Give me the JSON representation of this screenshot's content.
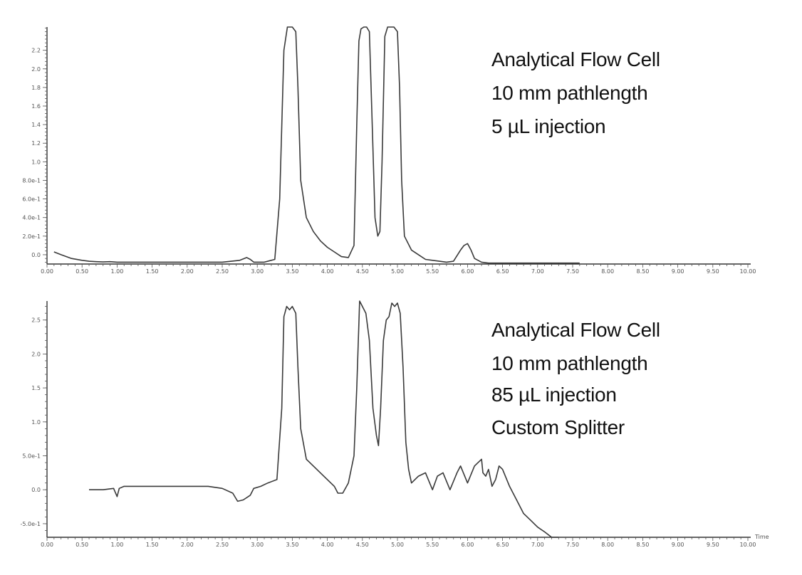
{
  "chart_data": [
    {
      "type": "line",
      "xlabel": "",
      "ylabel": "",
      "xlim": [
        0.0,
        10.0
      ],
      "ylim": [
        -0.1,
        2.45
      ],
      "x_ticks": [
        "0.00",
        "0.50",
        "1.00",
        "1.50",
        "2.00",
        "2.50",
        "3.00",
        "3.50",
        "4.00",
        "4.50",
        "5.00",
        "5.50",
        "6.00",
        "6.50",
        "7.00",
        "7.50",
        "8.00",
        "8.50",
        "9.00",
        "9.50",
        "10.00"
      ],
      "y_ticks": [
        {
          "value": 0.0,
          "label": "0.0"
        },
        {
          "value": 0.2,
          "label": "2.0e-1"
        },
        {
          "value": 0.4,
          "label": "4.0e-1"
        },
        {
          "value": 0.6,
          "label": "6.0e-1"
        },
        {
          "value": 0.8,
          "label": "8.0e-1"
        },
        {
          "value": 1.0,
          "label": "1.0"
        },
        {
          "value": 1.2,
          "label": "1.2"
        },
        {
          "value": 1.4,
          "label": "1.4"
        },
        {
          "value": 1.6,
          "label": "1.6"
        },
        {
          "value": 1.8,
          "label": "1.8"
        },
        {
          "value": 2.0,
          "label": "2.0"
        },
        {
          "value": 2.2,
          "label": "2.2"
        }
      ],
      "annotation": [
        "Analytical Flow Cell",
        "10 mm pathlength",
        "5 µL injection"
      ],
      "series": [
        {
          "x": [
            0.1,
            0.2,
            0.35,
            0.5,
            0.6,
            0.7,
            0.8,
            0.9,
            1.0,
            1.5,
            2.0,
            2.5,
            2.75,
            2.85,
            2.9,
            2.95,
            3.1,
            3.25,
            3.32,
            3.38,
            3.43,
            3.46,
            3.5,
            3.55,
            3.58,
            3.62,
            3.7,
            3.8,
            3.9,
            4.0,
            4.1,
            4.2,
            4.3,
            4.38,
            4.42,
            4.45,
            4.48,
            4.52,
            4.56,
            4.6,
            4.64,
            4.68,
            4.72,
            4.75,
            4.78,
            4.82,
            4.86,
            4.9,
            4.95,
            5.0,
            5.03,
            5.06,
            5.1,
            5.2,
            5.3,
            5.4,
            5.5,
            5.6,
            5.7,
            5.8,
            5.9,
            5.95,
            6.0,
            6.05,
            6.1,
            6.2,
            6.3,
            6.4,
            6.6,
            7.0,
            7.6
          ],
          "y": [
            0.03,
            0.0,
            -0.04,
            -0.06,
            -0.07,
            -0.075,
            -0.078,
            -0.075,
            -0.08,
            -0.08,
            -0.08,
            -0.08,
            -0.06,
            -0.03,
            -0.05,
            -0.08,
            -0.08,
            -0.05,
            0.6,
            2.2,
            2.45,
            2.45,
            2.45,
            2.4,
            1.8,
            0.8,
            0.4,
            0.25,
            0.15,
            0.08,
            0.03,
            -0.02,
            -0.03,
            0.1,
            1.4,
            2.3,
            2.43,
            2.45,
            2.45,
            2.4,
            1.4,
            0.4,
            0.2,
            0.25,
            1.0,
            2.35,
            2.45,
            2.45,
            2.45,
            2.4,
            1.8,
            0.8,
            0.2,
            0.05,
            0.0,
            -0.05,
            -0.06,
            -0.07,
            -0.08,
            -0.07,
            0.05,
            0.1,
            0.12,
            0.05,
            -0.04,
            -0.08,
            -0.09,
            -0.09,
            -0.09,
            -0.09,
            -0.09
          ]
        }
      ]
    },
    {
      "type": "line",
      "xlabel": "Time",
      "ylabel": "",
      "xlim": [
        0.0,
        10.0
      ],
      "ylim": [
        -0.7,
        2.78
      ],
      "x_ticks": [
        "0.00",
        "0.50",
        "1.00",
        "1.50",
        "2.00",
        "2.50",
        "3.00",
        "3.50",
        "4.00",
        "4.50",
        "5.00",
        "5.50",
        "6.00",
        "6.50",
        "7.00",
        "7.50",
        "8.00",
        "8.50",
        "9.00",
        "9.50",
        "10.00"
      ],
      "y_ticks": [
        {
          "value": -0.5,
          "label": "-5.0e-1"
        },
        {
          "value": 0.0,
          "label": "0.0"
        },
        {
          "value": 0.5,
          "label": "5.0e-1"
        },
        {
          "value": 1.0,
          "label": "1.0"
        },
        {
          "value": 1.5,
          "label": "1.5"
        },
        {
          "value": 2.0,
          "label": "2.0"
        },
        {
          "value": 2.5,
          "label": "2.5"
        }
      ],
      "annotation": [
        "Analytical Flow Cell",
        "10 mm pathlength",
        "85 µL injection",
        "Custom Splitter"
      ],
      "series": [
        {
          "x": [
            0.6,
            0.8,
            0.95,
            1.0,
            1.03,
            1.1,
            1.3,
            1.6,
            2.0,
            2.3,
            2.5,
            2.65,
            2.72,
            2.8,
            2.9,
            2.95,
            3.05,
            3.15,
            3.28,
            3.35,
            3.38,
            3.42,
            3.46,
            3.5,
            3.55,
            3.58,
            3.62,
            3.7,
            3.8,
            3.9,
            4.0,
            4.1,
            4.15,
            4.22,
            4.3,
            4.38,
            4.42,
            4.46,
            4.5,
            4.55,
            4.6,
            4.65,
            4.7,
            4.73,
            4.76,
            4.8,
            4.84,
            4.88,
            4.92,
            4.96,
            5.0,
            5.04,
            5.08,
            5.12,
            5.16,
            5.2,
            5.3,
            5.4,
            5.5,
            5.57,
            5.65,
            5.75,
            5.85,
            5.9,
            6.0,
            6.1,
            6.2,
            6.22,
            6.26,
            6.3,
            6.35,
            6.4,
            6.45,
            6.5,
            6.6,
            6.7,
            6.8,
            6.9,
            7.0,
            7.1,
            7.2,
            7.3
          ],
          "y": [
            0.0,
            0.0,
            0.02,
            -0.1,
            0.02,
            0.05,
            0.05,
            0.05,
            0.05,
            0.05,
            0.02,
            -0.05,
            -0.17,
            -0.15,
            -0.08,
            0.02,
            0.05,
            0.1,
            0.15,
            1.2,
            2.55,
            2.7,
            2.65,
            2.7,
            2.6,
            1.8,
            0.9,
            0.45,
            0.35,
            0.25,
            0.15,
            0.05,
            -0.05,
            -0.05,
            0.1,
            0.5,
            1.5,
            2.78,
            2.7,
            2.6,
            2.2,
            1.2,
            0.8,
            0.65,
            1.2,
            2.2,
            2.5,
            2.55,
            2.75,
            2.7,
            2.75,
            2.6,
            1.8,
            0.7,
            0.3,
            0.1,
            0.2,
            0.25,
            0.0,
            0.2,
            0.25,
            0.0,
            0.25,
            0.35,
            0.1,
            0.35,
            0.45,
            0.25,
            0.2,
            0.3,
            0.05,
            0.15,
            0.35,
            0.3,
            0.05,
            -0.15,
            -0.35,
            -0.45,
            -0.55,
            -0.62,
            -0.7,
            -0.7
          ]
        }
      ]
    }
  ]
}
